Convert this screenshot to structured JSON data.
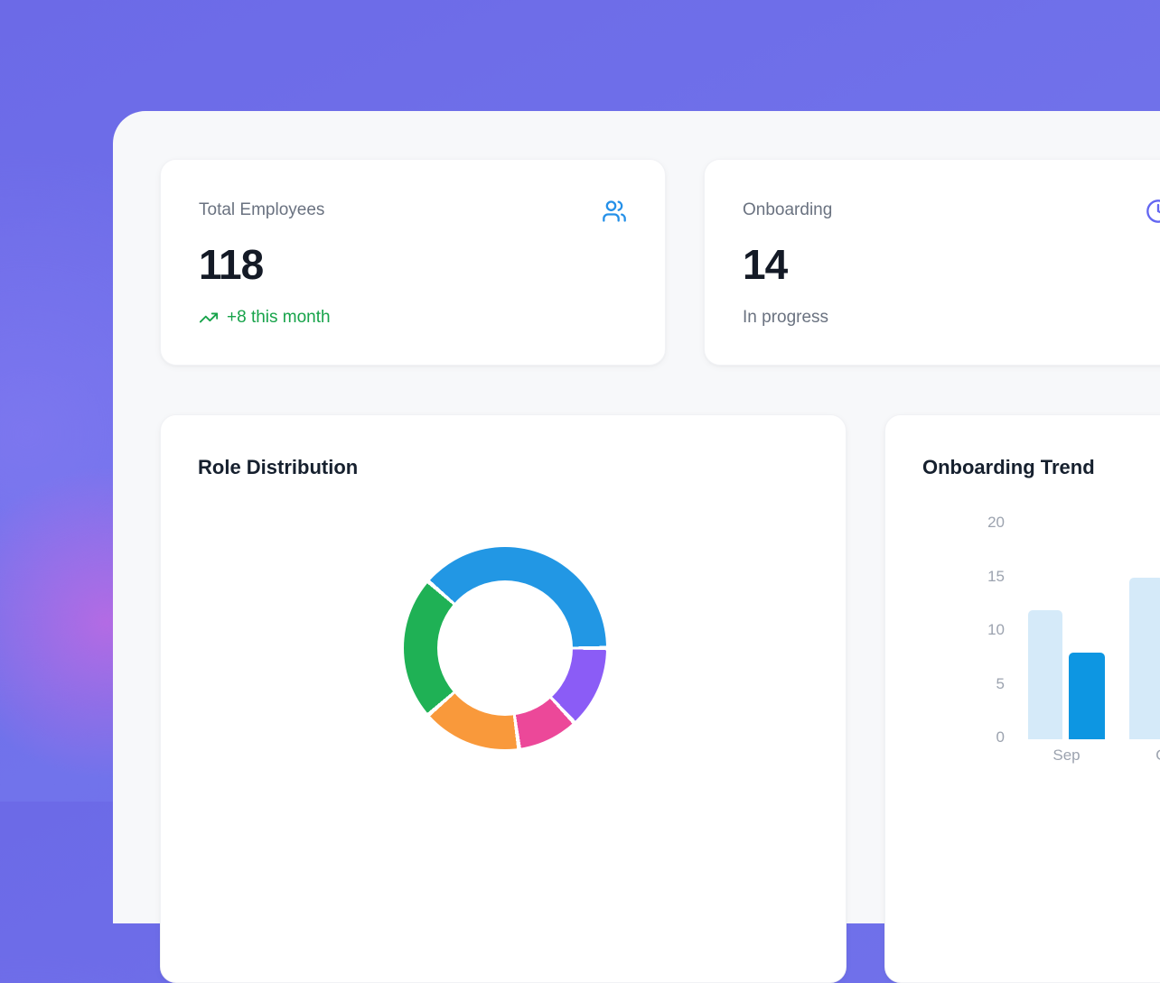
{
  "stats": [
    {
      "label": "Total Employees",
      "value": "118",
      "delta": "+8 this month",
      "icon": "users-icon"
    },
    {
      "label": "Onboarding",
      "value": "14",
      "sub": "In progress",
      "icon": "clock-icon"
    }
  ],
  "cards": {
    "role": {
      "title": "Role Distribution"
    },
    "trend": {
      "title": "Onboarding Trend"
    }
  },
  "chart_data": [
    {
      "type": "pie",
      "variant": "donut",
      "title": "Role Distribution",
      "start_angle_deg": -49,
      "legend_visible": false,
      "segments": [
        {
          "color": "#2297e4",
          "percent": 38.6
        },
        {
          "color": "#8b5cf6",
          "percent": 13.1
        },
        {
          "color": "#ec4899",
          "percent": 9.7
        },
        {
          "color": "#f9993b",
          "percent": 15.8
        },
        {
          "color": "#1fb155",
          "percent": 22.8
        }
      ]
    },
    {
      "type": "bar",
      "title": "Onboarding Trend",
      "categories": [
        "Sep",
        "Oct"
      ],
      "series": [
        {
          "name": "series_1",
          "color": "#d5eaf9",
          "values": [
            12,
            15
          ]
        },
        {
          "name": "series_2",
          "color": "#0d96e2",
          "values": [
            8,
            null
          ]
        }
      ],
      "yticks": [
        0,
        5,
        10,
        15,
        20
      ],
      "ylim": [
        0,
        20
      ],
      "grid": false,
      "legend_visible": false
    }
  ],
  "colors": {
    "background_purple": "#6e6de8",
    "panel_gray": "#f7f8fa",
    "card_white": "#ffffff",
    "users_icon_blue": "#2590e8",
    "clock_icon_indigo": "#6366f1",
    "positive_green": "#17a34a",
    "text_primary": "#141a26",
    "text_secondary": "#6a7280",
    "axis_label_gray": "#9ca3af"
  }
}
